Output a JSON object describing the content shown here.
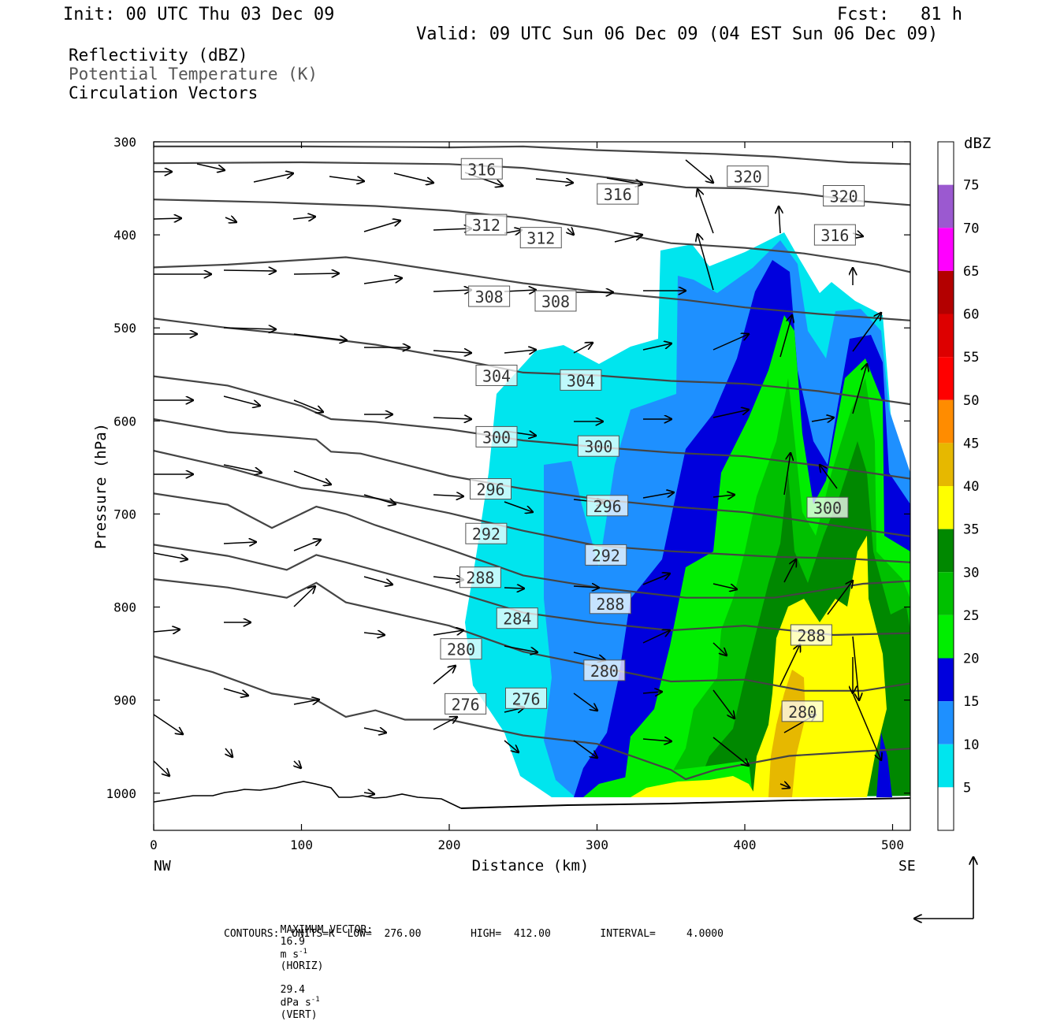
{
  "header": {
    "init": "Init: 00 UTC Thu 03 Dec 09",
    "fcst": "Fcst:   81 h",
    "valid": "Valid: 09 UTC Sun 06 Dec 09 (04 EST Sun 06 Dec 09)",
    "field1": "Reflectivity (dBZ)",
    "field2": "Potential Temperature (K)",
    "field3": "Circulation Vectors"
  },
  "chart_data": {
    "type": "cross-section",
    "xlabel": "Distance (km)",
    "ylabel": "Pressure (hPa)",
    "xlim": [
      0,
      512
    ],
    "ylim": [
      1040,
      300
    ],
    "xticks": [
      "0",
      "100",
      "200",
      "300",
      "400",
      "500"
    ],
    "yticks": [
      "300",
      "400",
      "500",
      "600",
      "700",
      "800",
      "900",
      "1000"
    ],
    "x_end_labels": {
      "left": "NW",
      "right": "SE"
    },
    "colorbar": {
      "unit": "dBZ",
      "levels": [
        "5",
        "10",
        "15",
        "20",
        "25",
        "30",
        "35",
        "40",
        "45",
        "50",
        "55",
        "60",
        "65",
        "70",
        "75"
      ],
      "colors": [
        "#ffffff",
        "#00e5ee",
        "#1e90ff",
        "#0000dd",
        "#00ee00",
        "#00c000",
        "#008800",
        "#ffff00",
        "#e6b800",
        "#ff8c00",
        "#ff0000",
        "#dd0000",
        "#b30000",
        "#ff00ff",
        "#9b59d0",
        "#ffffff"
      ]
    },
    "theta_labels": [
      {
        "text": "316",
        "x": 222,
        "p": 329
      },
      {
        "text": "316",
        "x": 314,
        "p": 356
      },
      {
        "text": "320",
        "x": 402,
        "p": 337
      },
      {
        "text": "320",
        "x": 467,
        "p": 358
      },
      {
        "text": "312",
        "x": 225,
        "p": 389
      },
      {
        "text": "312",
        "x": 262,
        "p": 403
      },
      {
        "text": "316",
        "x": 461,
        "p": 400
      },
      {
        "text": "308",
        "x": 227,
        "p": 466
      },
      {
        "text": "308",
        "x": 272,
        "p": 471
      },
      {
        "text": "304",
        "x": 232,
        "p": 551
      },
      {
        "text": "304",
        "x": 289,
        "p": 556
      },
      {
        "text": "300",
        "x": 232,
        "p": 617
      },
      {
        "text": "300",
        "x": 301,
        "p": 627
      },
      {
        "text": "296",
        "x": 228,
        "p": 673
      },
      {
        "text": "296",
        "x": 307,
        "p": 691
      },
      {
        "text": "300",
        "x": 456,
        "p": 693
      },
      {
        "text": "292",
        "x": 225,
        "p": 721
      },
      {
        "text": "292",
        "x": 306,
        "p": 744
      },
      {
        "text": "288",
        "x": 221,
        "p": 768
      },
      {
        "text": "288",
        "x": 309,
        "p": 796
      },
      {
        "text": "284",
        "x": 246,
        "p": 812
      },
      {
        "text": "288",
        "x": 445,
        "p": 830
      },
      {
        "text": "280",
        "x": 208,
        "p": 845
      },
      {
        "text": "280",
        "x": 305,
        "p": 868
      },
      {
        "text": "276",
        "x": 211,
        "p": 904
      },
      {
        "text": "276",
        "x": 252,
        "p": 898
      },
      {
        "text": "280",
        "x": 439,
        "p": 912
      }
    ],
    "footer": {
      "max_vector_label": "MAXIMUM VECTOR:",
      "horiz_value": "16.9",
      "horiz_unit": "m s",
      "horiz_sup": "-1",
      "horiz_tag": "(HORIZ)",
      "vert_value": "29.4",
      "vert_unit": "dPa s",
      "vert_sup": "-1",
      "vert_tag": "(VERT)",
      "contours": "CONTOURS:  UNITS=K  LOW=  276.00        HIGH=  412.00        INTERVAL=     4.0000"
    }
  }
}
